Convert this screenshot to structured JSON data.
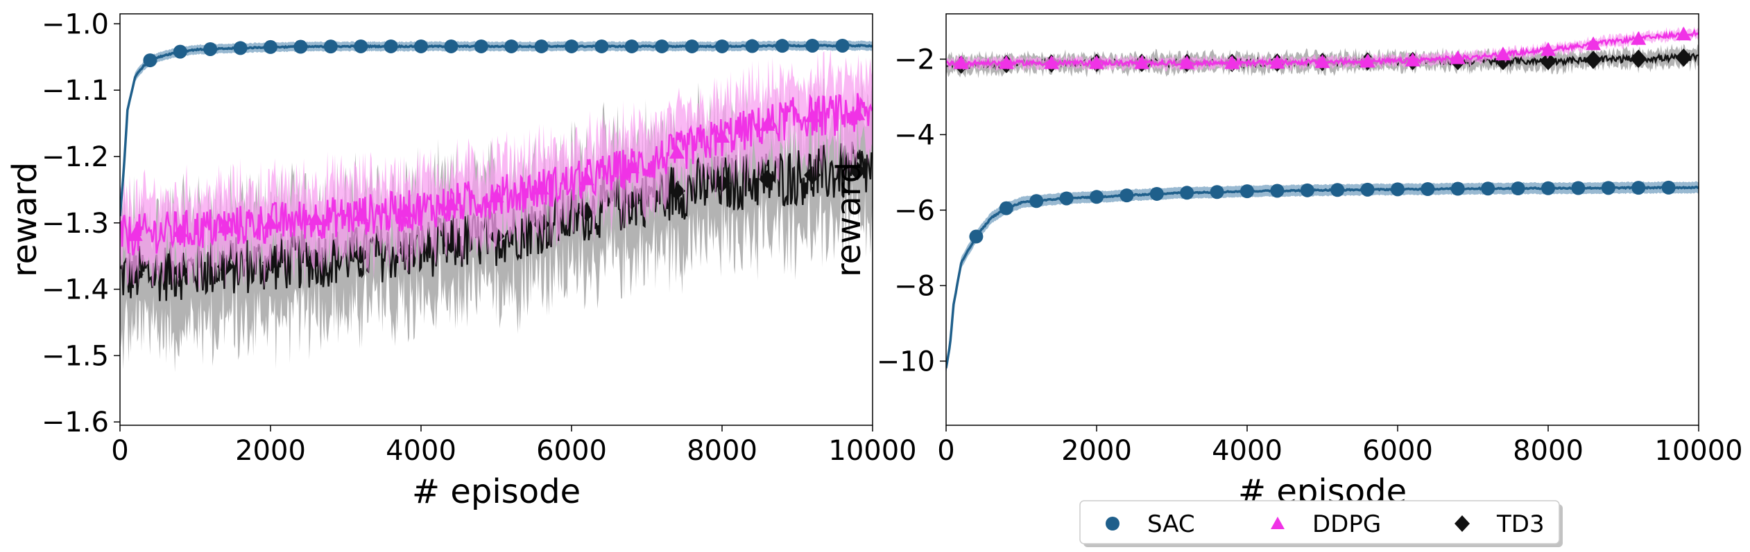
{
  "colors": {
    "SAC": "#1f5f8b",
    "SAC_band": "#7fa7c6",
    "DDPG": "#f032e6",
    "DDPG_band": "#f8a0f0",
    "TD3": "#111111",
    "TD3_band": "#999999"
  },
  "legend": [
    {
      "name": "SAC",
      "marker": "circle"
    },
    {
      "name": "DDPG",
      "marker": "triangle"
    },
    {
      "name": "TD3",
      "marker": "diamond"
    }
  ],
  "chart_data": [
    {
      "type": "line",
      "xlabel": "# episode",
      "ylabel": "reward",
      "xlim": [
        0,
        10000
      ],
      "ylim": [
        -1.605,
        -0.985
      ],
      "xticks": [
        0,
        2000,
        4000,
        6000,
        8000,
        10000
      ],
      "xtick_labels": [
        "0",
        "2000",
        "4000",
        "6000",
        "8000",
        "10000"
      ],
      "yticks": [
        -1.6,
        -1.5,
        -1.4,
        -1.3,
        -1.2,
        -1.1,
        -1.0
      ],
      "ytick_labels": [
        "−1.6",
        "−1.5",
        "−1.4",
        "−1.3",
        "−1.2",
        "−1.1",
        "−1.0"
      ],
      "series": [
        {
          "name": "SAC",
          "marker": "circle",
          "x": [
            0,
            50,
            100,
            200,
            300,
            400,
            600,
            800,
            1000,
            1500,
            2000,
            3000,
            4000,
            5000,
            6000,
            7000,
            8000,
            9000,
            10000
          ],
          "y": [
            -1.29,
            -1.22,
            -1.13,
            -1.08,
            -1.065,
            -1.055,
            -1.047,
            -1.042,
            -1.039,
            -1.037,
            -1.035,
            -1.034,
            -1.034,
            -1.034,
            -1.034,
            -1.034,
            -1.034,
            -1.033,
            -1.033
          ],
          "band": 0.007
        },
        {
          "name": "DDPG",
          "marker": "triangle",
          "x": [
            0,
            1000,
            2000,
            3000,
            4000,
            5000,
            6000,
            7000,
            8000,
            9000,
            10000
          ],
          "y": [
            -1.32,
            -1.31,
            -1.3,
            -1.29,
            -1.28,
            -1.26,
            -1.24,
            -1.21,
            -1.17,
            -1.14,
            -1.135
          ],
          "band": 0.05
        },
        {
          "name": "TD3",
          "marker": "diamond",
          "x": [
            0,
            1000,
            2000,
            3000,
            4000,
            5000,
            6000,
            7000,
            8000,
            9000,
            10000
          ],
          "y": [
            -1.38,
            -1.37,
            -1.36,
            -1.35,
            -1.34,
            -1.32,
            -1.29,
            -1.26,
            -1.24,
            -1.23,
            -1.22
          ],
          "band": 0.08
        }
      ]
    },
    {
      "type": "line",
      "xlabel": "# episode",
      "ylabel": "reward",
      "xlim": [
        0,
        10000
      ],
      "ylim": [
        -11.7,
        -0.8
      ],
      "xticks": [
        0,
        2000,
        4000,
        6000,
        8000,
        10000
      ],
      "xtick_labels": [
        "0",
        "2000",
        "4000",
        "6000",
        "8000",
        "10000"
      ],
      "yticks": [
        -10,
        -8,
        -6,
        -4,
        -2
      ],
      "ytick_labels": [
        "−10",
        "−8",
        "−6",
        "−4",
        "−2"
      ],
      "series": [
        {
          "name": "SAC",
          "marker": "circle",
          "x": [
            0,
            50,
            100,
            200,
            400,
            600,
            800,
            1000,
            1500,
            2000,
            3000,
            4000,
            5000,
            6000,
            7000,
            8000,
            9000,
            10000
          ],
          "y": [
            -10.2,
            -9.6,
            -8.5,
            -7.4,
            -6.7,
            -6.2,
            -5.95,
            -5.8,
            -5.7,
            -5.65,
            -5.55,
            -5.5,
            -5.47,
            -5.45,
            -5.43,
            -5.42,
            -5.41,
            -5.4
          ],
          "band": 0.15
        },
        {
          "name": "DDPG",
          "marker": "triangle",
          "x": [
            0,
            2000,
            4000,
            6000,
            7000,
            8000,
            9000,
            10000
          ],
          "y": [
            -2.1,
            -2.1,
            -2.1,
            -2.05,
            -1.95,
            -1.75,
            -1.5,
            -1.3
          ],
          "band": 0.12
        },
        {
          "name": "TD3",
          "marker": "diamond",
          "x": [
            0,
            2000,
            4000,
            6000,
            8000,
            9000,
            10000
          ],
          "y": [
            -2.15,
            -2.1,
            -2.1,
            -2.05,
            -2.05,
            -2.0,
            -1.95
          ],
          "band": 0.2
        }
      ]
    }
  ]
}
